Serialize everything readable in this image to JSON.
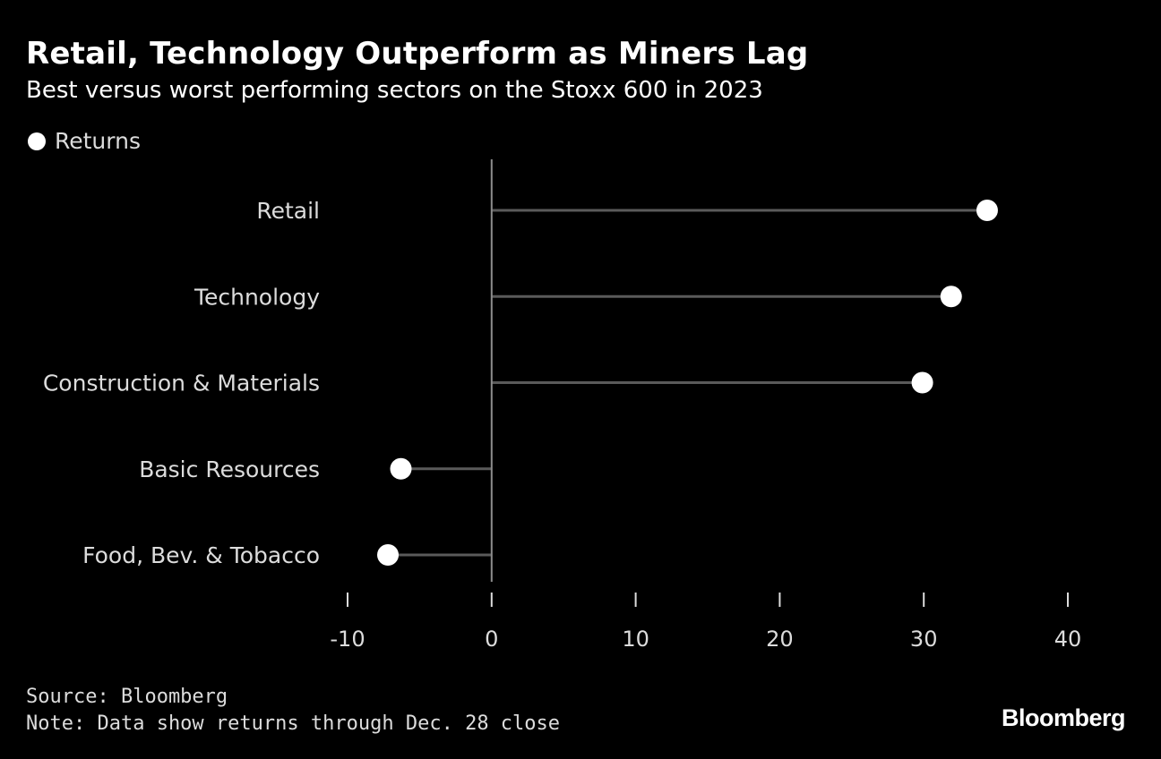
{
  "header": {
    "title": "Retail, Technology Outperform as Miners Lag",
    "subtitle": "Best versus worst performing sectors on the Stoxx 600 in 2023"
  },
  "legend": {
    "label": "Returns"
  },
  "colors": {
    "background": "#000000",
    "dot": "#ffffff",
    "stem": "#5a5a5a",
    "axis": "#8c8c8c",
    "label_text": "#dcdcdc"
  },
  "chart_data": {
    "type": "lollipop",
    "orientation": "horizontal",
    "series": [
      {
        "name": "Returns",
        "categories": [
          "Retail",
          "Technology",
          "Construction & Materials",
          "Basic Resources",
          "Food, Bev. & Tobacco"
        ],
        "values": [
          34.4,
          31.9,
          29.9,
          -6.3,
          -7.2
        ]
      }
    ],
    "xlim": [
      -10,
      40
    ],
    "xticks": [
      -10,
      0,
      10,
      20,
      30,
      40
    ],
    "xlabel": "",
    "ylabel": "",
    "grid": false
  },
  "footer": {
    "source": "Source: Bloomberg",
    "note": "Note: Data show returns through Dec. 28 close"
  },
  "brand": "Bloomberg"
}
